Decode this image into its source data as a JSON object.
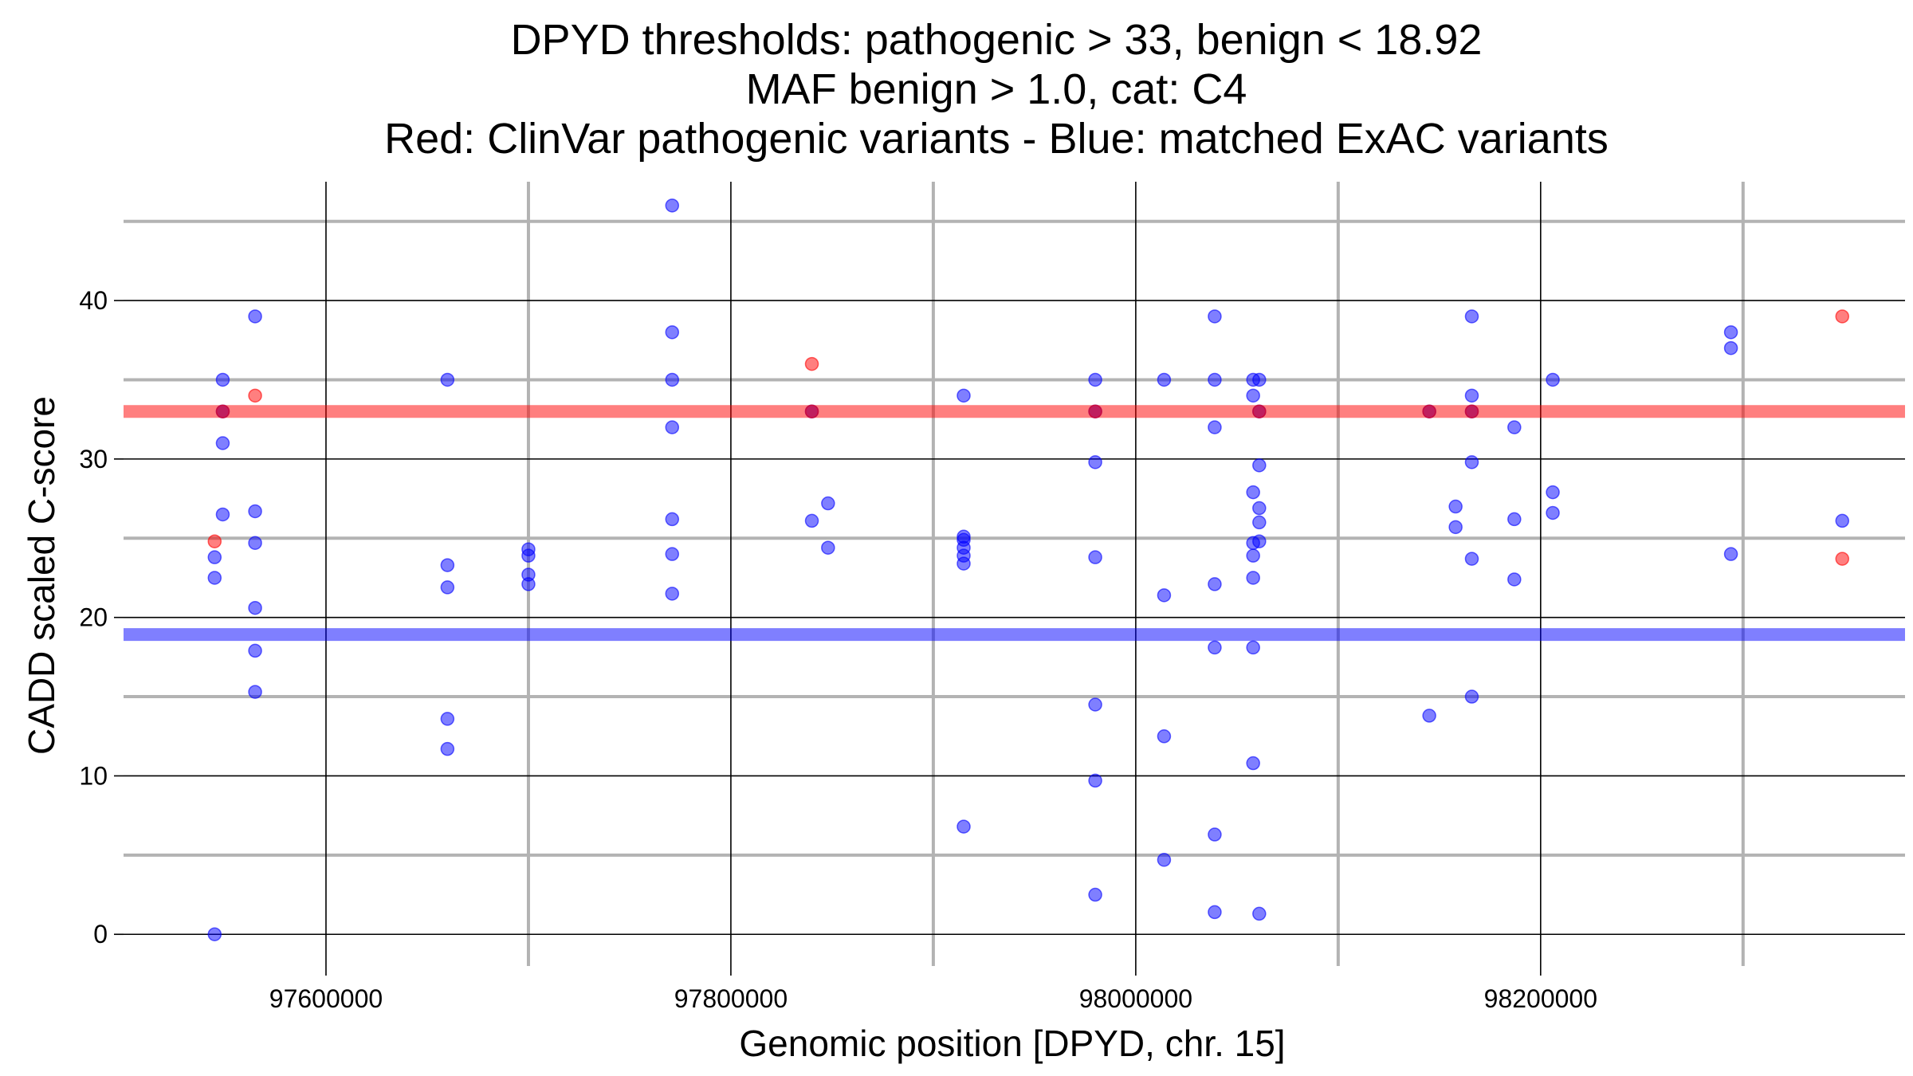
{
  "chart_data": {
    "type": "scatter",
    "title_lines": [
      "DPYD thresholds: pathogenic > 33, benign < 18.92",
      "MAF benign > 1.0, cat: C4",
      "Red: ClinVar pathogenic variants - Blue: matched ExAC variants"
    ],
    "xlabel": "Genomic position [DPYD, chr. 15]",
    "ylabel": "CADD scaled C-score",
    "xlim": [
      97500000,
      98380000
    ],
    "ylim": [
      -2,
      47.5
    ],
    "x_ticks": [
      97600000,
      97800000,
      98000000,
      98200000
    ],
    "x_tick_labels": [
      "97600000",
      "97800000",
      "98000000",
      "98200000"
    ],
    "x_minor_ticks": [
      97700000,
      97900000,
      98100000,
      98300000
    ],
    "y_ticks": [
      0,
      10,
      20,
      30,
      40
    ],
    "y_tick_labels": [
      "0",
      "10",
      "20",
      "30",
      "40"
    ],
    "y_minor_ticks": [
      5,
      15,
      25,
      35,
      45
    ],
    "grid": true,
    "thresholds": [
      {
        "name": "pathogenic",
        "value": 33,
        "color": "#ff0000"
      },
      {
        "name": "benign",
        "value": 18.92,
        "color": "#0000ff"
      }
    ],
    "colors": {
      "pathogenic": "#ff0000",
      "benign": "#0000ff"
    },
    "series": [
      {
        "color": "#0000ff",
        "points": [
          [
            97545000,
            0
          ],
          [
            97545000,
            22.5
          ],
          [
            97545000,
            23.8
          ],
          [
            97549000,
            35
          ],
          [
            97549000,
            31
          ],
          [
            97549000,
            26.5
          ],
          [
            97549000,
            33
          ],
          [
            97565000,
            39
          ],
          [
            97565000,
            26.7
          ],
          [
            97565000,
            24.7
          ],
          [
            97565000,
            20.6
          ],
          [
            97565000,
            17.9
          ],
          [
            97565000,
            15.3
          ],
          [
            97660000,
            35
          ],
          [
            97660000,
            23.3
          ],
          [
            97660000,
            21.9
          ],
          [
            97660000,
            13.6
          ],
          [
            97660000,
            11.7
          ],
          [
            97700000,
            24.3
          ],
          [
            97700000,
            23.9
          ],
          [
            97700000,
            22.7
          ],
          [
            97700000,
            22.1
          ],
          [
            97771000,
            46
          ],
          [
            97771000,
            38
          ],
          [
            97771000,
            35
          ],
          [
            97771000,
            32
          ],
          [
            97771000,
            26.2
          ],
          [
            97771000,
            24
          ],
          [
            97771000,
            21.5
          ],
          [
            97840000,
            33
          ],
          [
            97840000,
            26.1
          ],
          [
            97848000,
            27.2
          ],
          [
            97848000,
            24.4
          ],
          [
            97915000,
            34
          ],
          [
            97915000,
            25.1
          ],
          [
            97915000,
            24.9
          ],
          [
            97915000,
            24.4
          ],
          [
            97915000,
            23.9
          ],
          [
            97915000,
            23.4
          ],
          [
            97915000,
            6.8
          ],
          [
            97980000,
            35
          ],
          [
            97980000,
            33
          ],
          [
            97980000,
            29.8
          ],
          [
            97980000,
            23.8
          ],
          [
            97980000,
            14.5
          ],
          [
            97980000,
            9.7
          ],
          [
            97980000,
            2.5
          ],
          [
            98014000,
            35
          ],
          [
            98014000,
            21.4
          ],
          [
            98014000,
            12.5
          ],
          [
            98014000,
            4.7
          ],
          [
            98039000,
            39
          ],
          [
            98039000,
            35
          ],
          [
            98039000,
            32
          ],
          [
            98039000,
            22.1
          ],
          [
            98039000,
            18.1
          ],
          [
            98039000,
            6.3
          ],
          [
            98039000,
            1.4
          ],
          [
            98058000,
            35
          ],
          [
            98058000,
            34
          ],
          [
            98058000,
            27.9
          ],
          [
            98058000,
            24.7
          ],
          [
            98058000,
            23.9
          ],
          [
            98058000,
            22.5
          ],
          [
            98058000,
            18.1
          ],
          [
            98058000,
            10.8
          ],
          [
            98061000,
            35
          ],
          [
            98061000,
            33
          ],
          [
            98061000,
            29.6
          ],
          [
            98061000,
            26.9
          ],
          [
            98061000,
            26
          ],
          [
            98061000,
            24.8
          ],
          [
            98061000,
            1.3
          ],
          [
            98145000,
            33
          ],
          [
            98145000,
            13.8
          ],
          [
            98158000,
            27
          ],
          [
            98158000,
            25.7
          ],
          [
            98166000,
            39
          ],
          [
            98166000,
            34
          ],
          [
            98166000,
            33
          ],
          [
            98166000,
            29.8
          ],
          [
            98166000,
            23.7
          ],
          [
            98166000,
            15
          ],
          [
            98187000,
            32
          ],
          [
            98187000,
            26.2
          ],
          [
            98187000,
            22.4
          ],
          [
            98206000,
            35
          ],
          [
            98206000,
            27.9
          ],
          [
            98206000,
            26.6
          ],
          [
            98294000,
            38
          ],
          [
            98294000,
            37
          ],
          [
            98294000,
            24
          ],
          [
            98349000,
            26.1
          ]
        ]
      },
      {
        "color": "#ff0000",
        "points": [
          [
            97545000,
            24.8
          ],
          [
            97549000,
            33
          ],
          [
            97565000,
            34
          ],
          [
            97840000,
            36
          ],
          [
            97840000,
            33
          ],
          [
            97980000,
            33
          ],
          [
            98061000,
            33
          ],
          [
            98145000,
            33
          ],
          [
            98166000,
            33
          ],
          [
            98349000,
            39
          ],
          [
            98349000,
            23.7
          ]
        ]
      }
    ]
  }
}
